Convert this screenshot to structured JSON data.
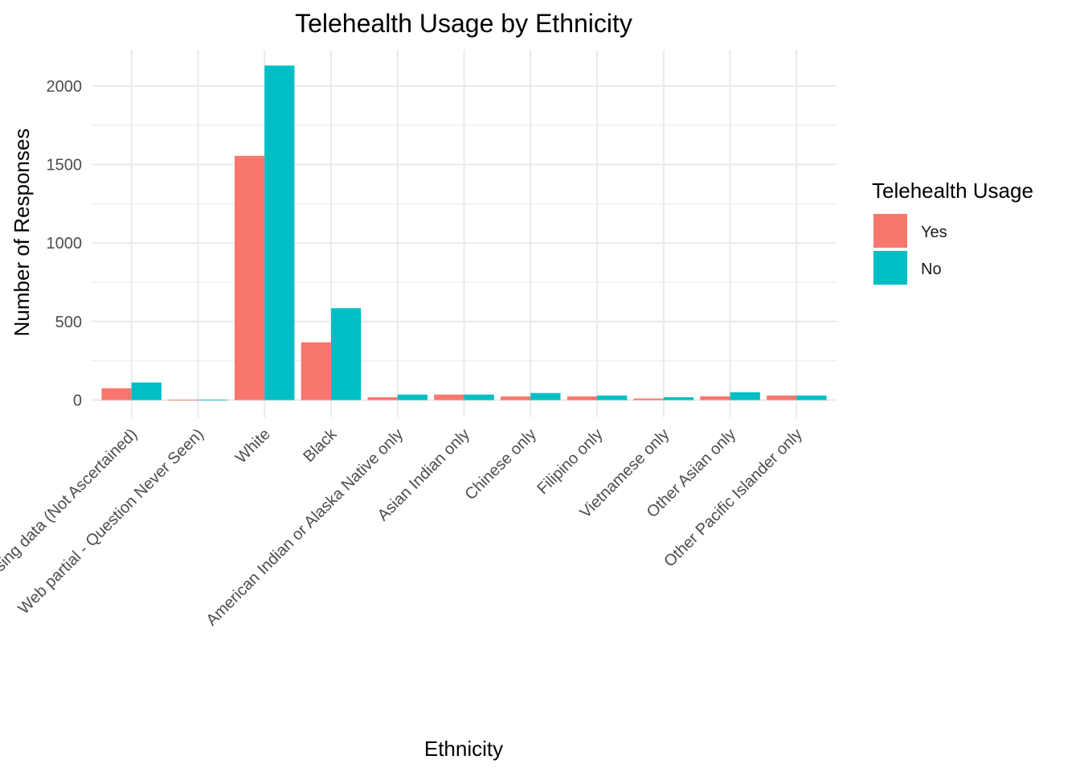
{
  "chart_data": {
    "type": "bar",
    "title": "Telehealth Usage by Ethnicity",
    "xlabel": "Ethnicity",
    "ylabel": "Number of Responses",
    "categories": [
      "Missing data (Not Ascertained)",
      "Web partial - Question Never Seen)",
      "White",
      "Black",
      "American Indian or Alaska Native only",
      "Asian Indian only",
      "Chinese only",
      "Filipino only",
      "Vietnamese only",
      "Other Asian only",
      "Other Pacific Islander only"
    ],
    "series": [
      {
        "name": "Yes",
        "color": "#F8766D",
        "values": [
          75,
          2,
          1555,
          368,
          18,
          35,
          23,
          23,
          10,
          24,
          29
        ]
      },
      {
        "name": "No",
        "color": "#00BFC4",
        "values": [
          112,
          3,
          2130,
          585,
          35,
          35,
          45,
          29,
          18,
          50,
          29
        ]
      }
    ],
    "ylim": [
      -110,
      2230
    ],
    "yticks": [
      0,
      500,
      1000,
      1500,
      2000
    ],
    "legend": {
      "title": "Telehealth Usage",
      "position": "right"
    },
    "grid": true
  }
}
